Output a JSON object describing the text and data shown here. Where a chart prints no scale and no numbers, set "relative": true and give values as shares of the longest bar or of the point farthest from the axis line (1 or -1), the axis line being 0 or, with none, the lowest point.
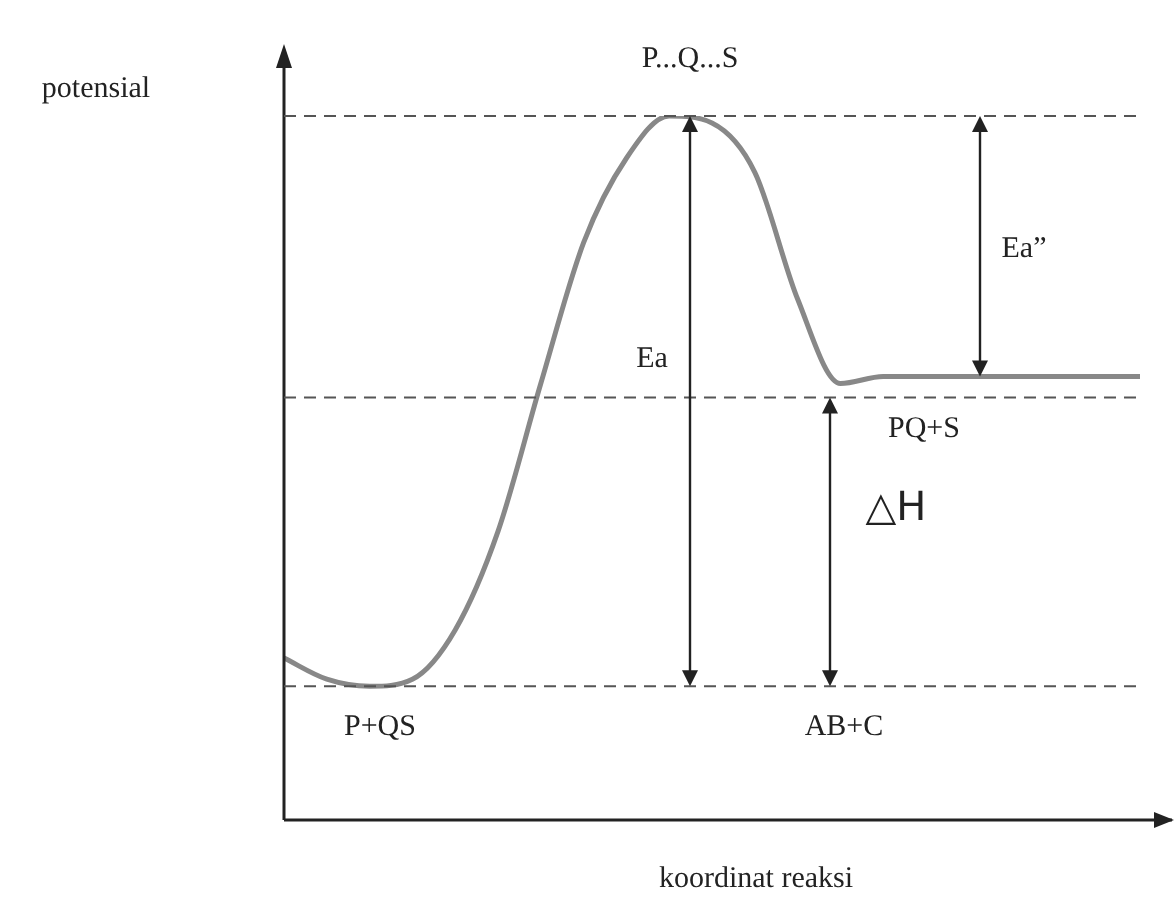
{
  "chart_data": {
    "type": "line",
    "relative": true,
    "xlabel": "koordinat reaksi",
    "ylabel": "potensial",
    "categories": [
      null,
      null,
      null,
      null,
      null,
      null,
      null,
      null,
      null,
      null,
      null,
      null,
      null,
      null,
      null,
      null,
      null,
      null,
      null,
      null,
      null
    ],
    "series": [
      {
        "color": "#888888",
        "values": [
          0.23,
          0.2,
          0.19,
          0.2,
          0.27,
          0.41,
          0.62,
          0.82,
          0.94,
          1.0,
          0.99,
          0.92,
          0.74,
          0.62,
          0.63,
          0.63,
          0.63,
          0.63,
          0.63,
          0.63,
          0.63
        ]
      }
    ],
    "marker": "none",
    "line_style": "solid",
    "legend": false,
    "ref_lines": [
      {
        "axis": "y",
        "value": 1.0,
        "line_style": "dashed",
        "color": "#555555"
      },
      {
        "axis": "y",
        "value": 0.6,
        "line_style": "dashed",
        "color": "#555555"
      },
      {
        "axis": "y",
        "value": 0.19,
        "line_style": "dashed",
        "color": "#555555"
      }
    ],
    "annotations": [
      "P...Q...S",
      "Ea”",
      "Ea",
      "PQ+S",
      "△H",
      "P+QS",
      "AB+C"
    ]
  }
}
